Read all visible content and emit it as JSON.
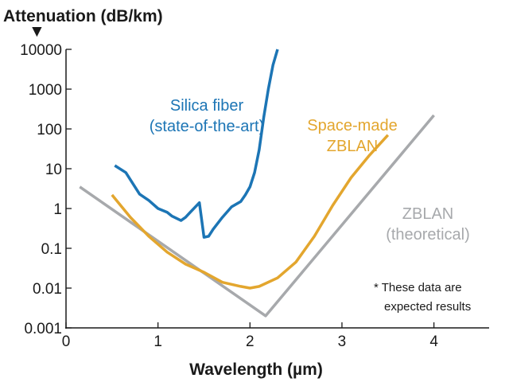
{
  "chart_data": {
    "type": "line",
    "ylabel": "Attenuation (dB/km)",
    "xlabel": "Wavelength (µm)",
    "yscale": "log",
    "ylim": [
      0.001,
      10000
    ],
    "xlim": [
      0,
      4.6
    ],
    "x_ticks": [
      0,
      1,
      2,
      3,
      4
    ],
    "x_tick_labels": [
      "0",
      "1",
      "2",
      "3",
      "4"
    ],
    "y_ticks": [
      0.001,
      0.01,
      0.1,
      1,
      10,
      100,
      1000,
      10000
    ],
    "y_tick_labels": [
      "0.001",
      "0.01",
      "0.1",
      "1",
      "10",
      "100",
      "1000",
      "10000"
    ],
    "grid": false,
    "series": [
      {
        "name": "Silica fiber (state-of-the-art)",
        "label_lines": [
          "Silica fiber",
          "(state-of-the-art)"
        ],
        "color": "#1c75b5",
        "x": [
          0.53,
          0.65,
          0.8,
          0.9,
          1.0,
          1.1,
          1.15,
          1.25,
          1.3,
          1.35,
          1.45,
          1.5,
          1.55,
          1.6,
          1.7,
          1.8,
          1.9,
          1.95,
          2.0,
          2.05,
          2.1,
          2.15,
          2.2,
          2.25,
          2.3
        ],
        "values": [
          12,
          8,
          2.3,
          1.6,
          1.0,
          0.8,
          0.65,
          0.5,
          0.6,
          0.8,
          1.4,
          0.19,
          0.2,
          0.3,
          0.6,
          1.1,
          1.5,
          2.2,
          3.5,
          8,
          30,
          200,
          1000,
          4000,
          10000
        ]
      },
      {
        "name": "Space-made ZBLAN",
        "label_lines": [
          "Space-made",
          "ZBLAN"
        ],
        "color": "#e3a62e",
        "x": [
          0.5,
          0.7,
          0.9,
          1.1,
          1.3,
          1.5,
          1.7,
          1.9,
          2.0,
          2.1,
          2.3,
          2.5,
          2.7,
          2.9,
          3.1,
          3.3,
          3.5
        ],
        "values": [
          2.2,
          0.6,
          0.2,
          0.08,
          0.04,
          0.025,
          0.014,
          0.011,
          0.01,
          0.011,
          0.018,
          0.045,
          0.2,
          1.2,
          6,
          22,
          70
        ]
      },
      {
        "name": "ZBLAN (theoretical)",
        "label_lines": [
          "ZBLAN",
          "(theoretical)"
        ],
        "color": "#a7a9ac",
        "x": [
          0.15,
          2.17,
          4.0
        ],
        "values": [
          3.5,
          0.002,
          220
        ]
      }
    ],
    "annotations": {
      "axis_marker": "▼",
      "note_lines": [
        "* These data are",
        "expected results"
      ]
    }
  }
}
